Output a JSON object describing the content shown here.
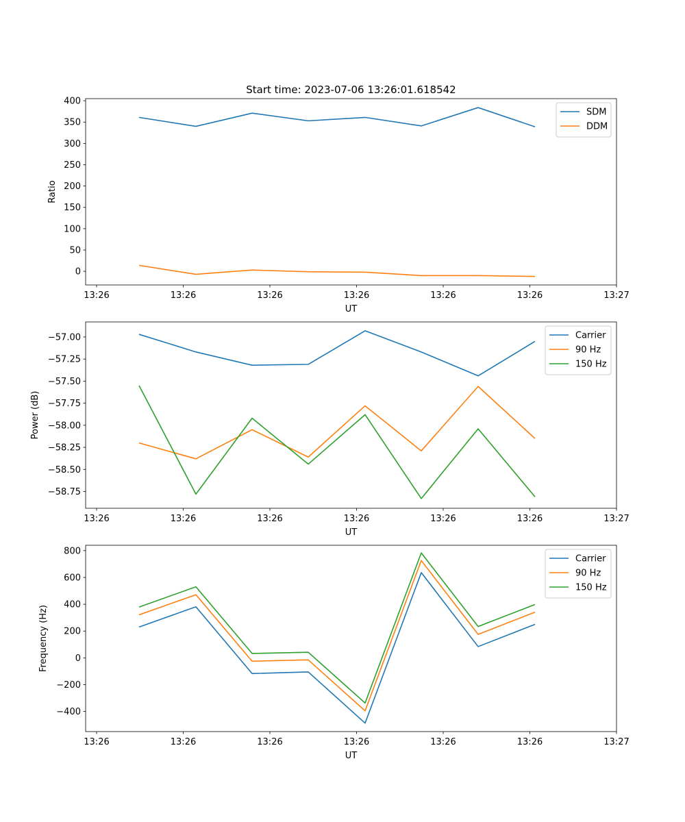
{
  "title": "Start time: 2023-07-06 13:26:01.618542",
  "chart_data": [
    {
      "type": "line",
      "xlabel": "UT",
      "ylabel": "Ratio",
      "xticks": [
        "13:26",
        "13:26",
        "13:26",
        "13:26",
        "13:26",
        "13:26",
        "13:26"
      ],
      "last_xtick": "13:27",
      "ylim": [
        -32,
        405
      ],
      "yticks": [
        0,
        50,
        100,
        150,
        200,
        250,
        300,
        350,
        400
      ],
      "ytick_labels": [
        "0",
        "50",
        "100",
        "150",
        "200",
        "250",
        "300",
        "350",
        "400"
      ],
      "legend_position": "top-right",
      "series": [
        {
          "name": "SDM",
          "color": "#1f77b4",
          "values": [
            361,
            340,
            371,
            353,
            361,
            341,
            384,
            339
          ]
        },
        {
          "name": "DDM",
          "color": "#ff7f0e",
          "values": [
            14,
            -7,
            3,
            -1,
            -2,
            -10,
            -10,
            -12
          ]
        }
      ]
    },
    {
      "type": "line",
      "xlabel": "UT",
      "ylabel": "Power (dB)",
      "xticks": [
        "13:26",
        "13:26",
        "13:26",
        "13:26",
        "13:26",
        "13:26",
        "13:26"
      ],
      "last_xtick": "13:27",
      "ylim": [
        -58.94,
        -56.83
      ],
      "yticks": [
        -57.0,
        -57.25,
        -57.5,
        -57.75,
        -58.0,
        -58.25,
        -58.5,
        -58.75
      ],
      "ytick_labels": [
        "−57.00",
        "−57.25",
        "−57.50",
        "−57.75",
        "−58.00",
        "−58.25",
        "−58.50",
        "−58.75"
      ],
      "legend_position": "top-right",
      "series": [
        {
          "name": "Carrier",
          "color": "#1f77b4",
          "values": [
            -56.97,
            -57.17,
            -57.32,
            -57.31,
            -56.93,
            -57.17,
            -57.44,
            -57.05
          ]
        },
        {
          "name": "90 Hz",
          "color": "#ff7f0e",
          "values": [
            -58.2,
            -58.38,
            -58.05,
            -58.36,
            -57.78,
            -58.29,
            -57.56,
            -58.15
          ]
        },
        {
          "name": "150 Hz",
          "color": "#2ca02c",
          "values": [
            -57.55,
            -58.78,
            -57.92,
            -58.44,
            -57.88,
            -58.83,
            -58.04,
            -58.81
          ]
        }
      ]
    },
    {
      "type": "line",
      "xlabel": "UT",
      "ylabel": "Frequency (Hz)",
      "xticks": [
        "13:26",
        "13:26",
        "13:26",
        "13:26",
        "13:26",
        "13:26",
        "13:26"
      ],
      "last_xtick": "13:27",
      "ylim": [
        -550,
        840
      ],
      "yticks": [
        800,
        600,
        400,
        200,
        0,
        -200,
        -400
      ],
      "ytick_labels": [
        "800",
        "600",
        "400",
        "200",
        "0",
        "−200",
        "−400"
      ],
      "legend_position": "top-right",
      "series": [
        {
          "name": "Carrier",
          "color": "#1f77b4",
          "values": [
            230,
            381,
            -117,
            -105,
            -487,
            636,
            84,
            250
          ]
        },
        {
          "name": "90 Hz",
          "color": "#ff7f0e",
          "values": [
            321,
            471,
            -25,
            -15,
            -395,
            726,
            175,
            341
          ]
        },
        {
          "name": "150 Hz",
          "color": "#2ca02c",
          "values": [
            379,
            530,
            33,
            42,
            -337,
            783,
            234,
            398
          ]
        }
      ]
    }
  ]
}
